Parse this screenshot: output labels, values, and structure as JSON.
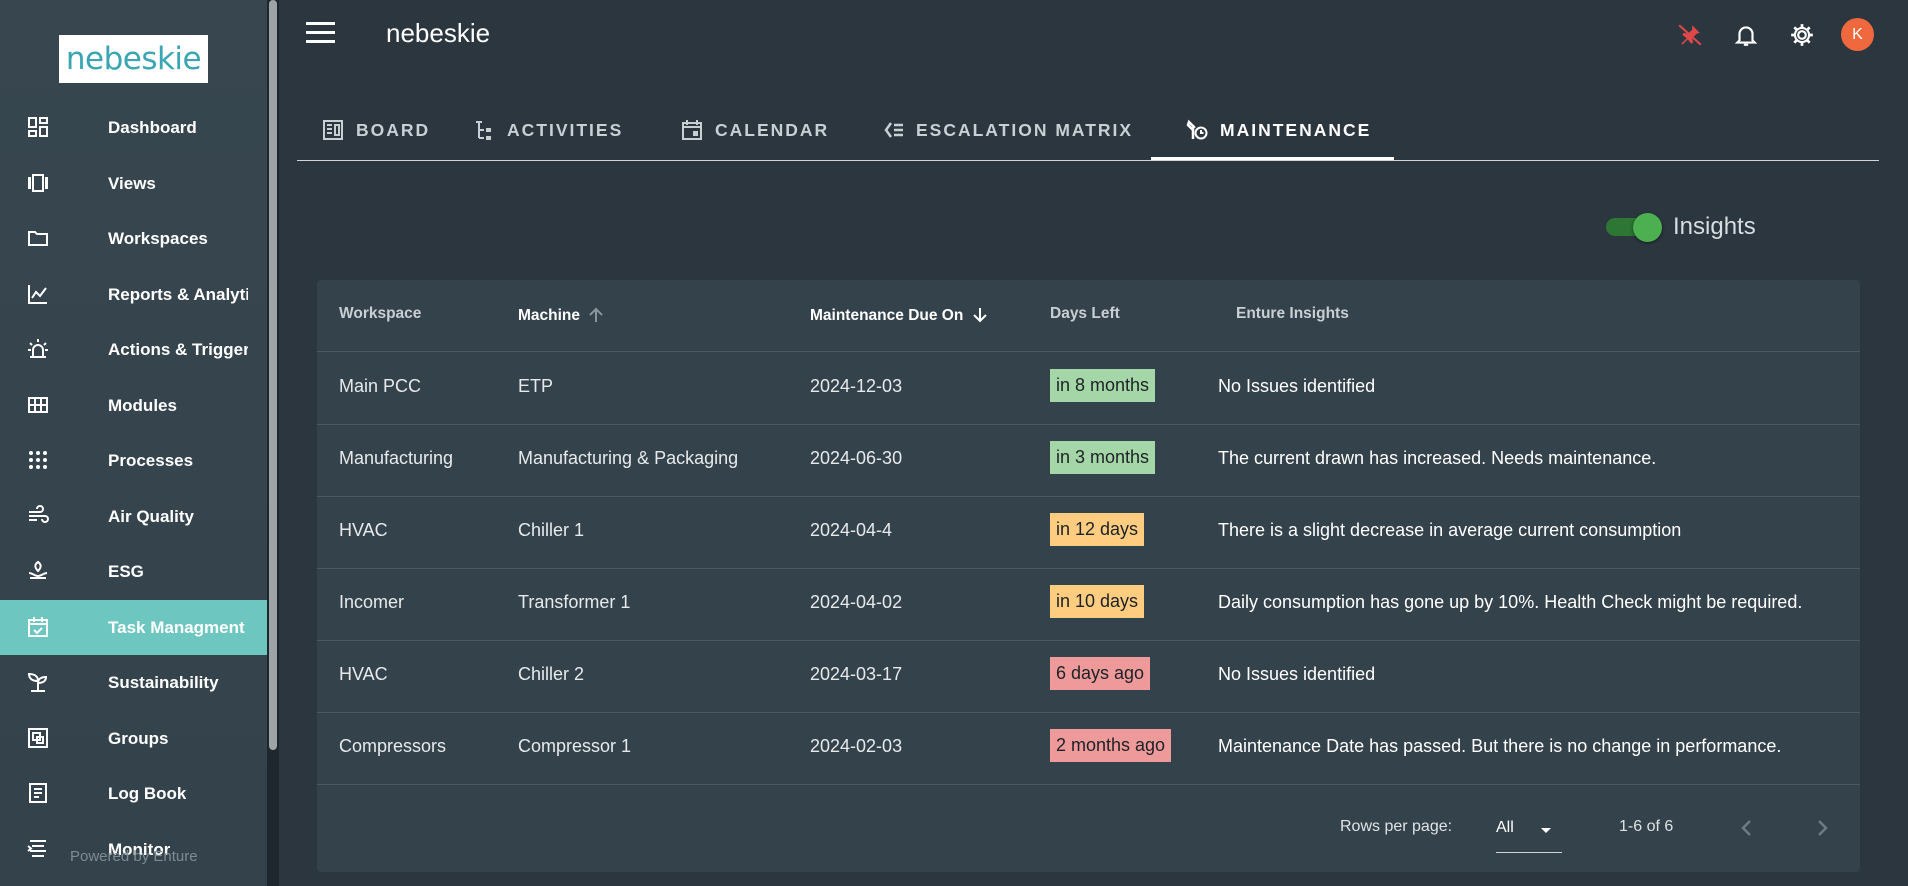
{
  "brand": {
    "logo_text": "nebeskie",
    "powered_by": "Powered by Enture"
  },
  "header": {
    "title": "nebeskie",
    "avatar_initial": "K"
  },
  "sidebar": {
    "items": [
      {
        "label": "Dashboard",
        "icon": "dashboard-icon"
      },
      {
        "label": "Views",
        "icon": "views-icon"
      },
      {
        "label": "Workspaces",
        "icon": "folder-icon"
      },
      {
        "label": "Reports & Analytics",
        "icon": "chart-line-icon"
      },
      {
        "label": "Actions & Triggers",
        "icon": "alarm-light-icon"
      },
      {
        "label": "Modules",
        "icon": "grid-icon"
      },
      {
        "label": "Processes",
        "icon": "dots-grid-icon"
      },
      {
        "label": "Air Quality",
        "icon": "wind-icon"
      },
      {
        "label": "ESG",
        "icon": "leaf-hand-icon"
      },
      {
        "label": "Task Managment",
        "icon": "calendar-check-icon",
        "active": true
      },
      {
        "label": "Sustainability",
        "icon": "sprout-icon"
      },
      {
        "label": "Groups",
        "icon": "group-icon"
      },
      {
        "label": "Log Book",
        "icon": "notebook-icon"
      },
      {
        "label": "Monitor",
        "icon": "monitor-icon"
      }
    ]
  },
  "tabs": [
    {
      "label": "BOARD",
      "icon": "board-icon"
    },
    {
      "label": "ACTIVITIES",
      "icon": "tree-list-icon"
    },
    {
      "label": "CALENDAR",
      "icon": "calendar-icon"
    },
    {
      "label": "ESCALATION MATRIX",
      "icon": "list-escalation-icon"
    },
    {
      "label": "MAINTENANCE",
      "icon": "wrench-clock-icon",
      "active": true
    }
  ],
  "insights_toggle": {
    "label": "Insights",
    "on": true
  },
  "table": {
    "columns": [
      "Workspace",
      "Machine",
      "Maintenance Due On",
      "Days Left",
      "Enture Insights"
    ],
    "rows": [
      {
        "workspace": "Main PCC",
        "machine": "ETP",
        "due": "2024-12-03",
        "days_left": "in 8 months",
        "status": "green",
        "insight": "No Issues identified"
      },
      {
        "workspace": "Manufacturing",
        "machine": "Manufacturing & Packaging",
        "due": "2024-06-30",
        "days_left": "in 3 months",
        "status": "green",
        "insight": "The current drawn has increased. Needs maintenance."
      },
      {
        "workspace": "HVAC",
        "machine": "Chiller 1",
        "due": "2024-04-4",
        "days_left": "in 12 days",
        "status": "orange",
        "insight": "There is a slight decrease in average current consumption"
      },
      {
        "workspace": "Incomer",
        "machine": "Transformer 1",
        "due": "2024-04-02",
        "days_left": "in 10 days",
        "status": "orange",
        "insight": "Daily consumption has gone up by 10%. Health Check might be required."
      },
      {
        "workspace": "HVAC",
        "machine": "Chiller 2",
        "due": "2024-03-17",
        "days_left": "6 days ago",
        "status": "red",
        "insight": "No Issues identified"
      },
      {
        "workspace": "Compressors",
        "machine": "Compressor 1",
        "due": "2024-02-03",
        "days_left": "2 months ago",
        "status": "red",
        "insight": "Maintenance Date has passed. But there is no change in performance."
      }
    ]
  },
  "pagination": {
    "rows_per_page_label": "Rows per page:",
    "rows_per_page_value": "All",
    "range": "1-6 of 6"
  },
  "colors": {
    "green": "#a5d6a7",
    "orange": "#ffcc80",
    "red": "#ef9a9a",
    "accent": "#6ec6c1",
    "avatar": "#f0683e"
  }
}
